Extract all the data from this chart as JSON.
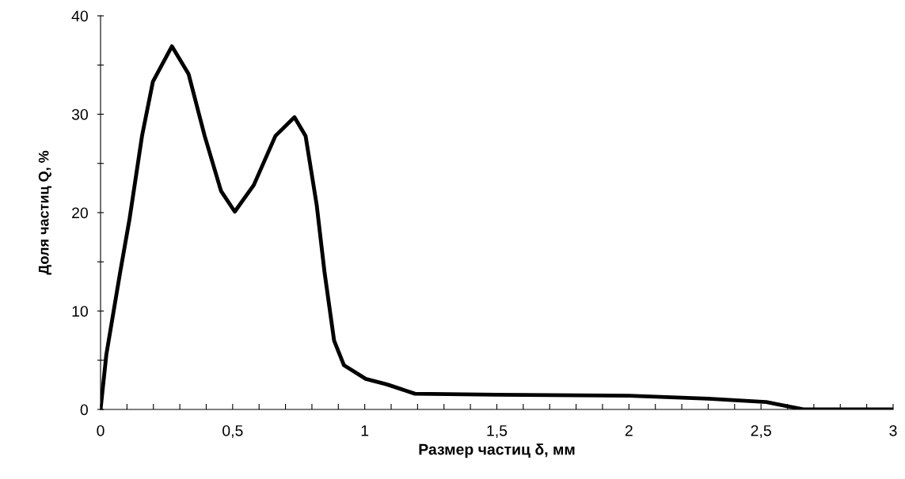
{
  "chart_data": {
    "type": "line",
    "xlabel": "Размер частиц δ, мм",
    "ylabel": "Доля частиц Q, %",
    "x": [
      0,
      0.022,
      0.074,
      0.11,
      0.157,
      0.198,
      0.27,
      0.333,
      0.394,
      0.456,
      0.508,
      0.58,
      0.662,
      0.734,
      0.776,
      0.818,
      0.848,
      0.884,
      0.921,
      1.004,
      1.076,
      1.089,
      1.19,
      1.5,
      2.0,
      2.3,
      2.52,
      2.66,
      3.0
    ],
    "series": [
      {
        "color": "#000000",
        "values": [
          0,
          5.6,
          13.9,
          19.4,
          27.8,
          33.3,
          36.9,
          34.1,
          27.8,
          22.2,
          20.1,
          22.8,
          27.8,
          29.7,
          27.8,
          20.8,
          13.9,
          7.0,
          4.5,
          3.1,
          2.6,
          2.5,
          1.6,
          1.5,
          1.4,
          1.1,
          0.75,
          0,
          0
        ]
      }
    ],
    "xlim": [
      0,
      3
    ],
    "ylim": [
      0,
      40
    ],
    "xticks": [
      0,
      {
        "value": 0.1,
        "label": null
      },
      {
        "value": 0.2,
        "label": null
      },
      {
        "value": 0.3,
        "label": null
      },
      {
        "value": 0.4,
        "label": null
      },
      {
        "value": 0.5,
        "label": "0,5"
      },
      {
        "value": 0.6,
        "label": null
      },
      {
        "value": 0.7,
        "label": null
      },
      {
        "value": 0.8,
        "label": null
      },
      {
        "value": 0.9,
        "label": null
      },
      1,
      {
        "value": 1.1,
        "label": null
      },
      {
        "value": 1.2,
        "label": null
      },
      {
        "value": 1.3,
        "label": null
      },
      {
        "value": 1.4,
        "label": null
      },
      {
        "value": 1.5,
        "label": "1,5"
      },
      {
        "value": 1.6,
        "label": null
      },
      {
        "value": 1.7,
        "label": null
      },
      {
        "value": 1.8,
        "label": null
      },
      {
        "value": 1.9,
        "label": null
      },
      2,
      {
        "value": 2.1,
        "label": null
      },
      {
        "value": 2.2,
        "label": null
      },
      {
        "value": 2.3,
        "label": null
      },
      {
        "value": 2.4,
        "label": null
      },
      {
        "value": 2.5,
        "label": "2,5"
      },
      {
        "value": 2.6,
        "label": null
      },
      {
        "value": 2.7,
        "label": null
      },
      {
        "value": 2.8,
        "label": null
      },
      {
        "value": 2.9,
        "label": null
      },
      3
    ],
    "yticks": [
      0,
      {
        "value": 5,
        "label": null
      },
      10,
      {
        "value": 15,
        "label": null
      },
      20,
      {
        "value": 25,
        "label": null
      },
      30,
      {
        "value": 35,
        "label": null
      },
      40
    ],
    "grid": false,
    "legend": false,
    "line_style": "solid",
    "marker": "none"
  }
}
